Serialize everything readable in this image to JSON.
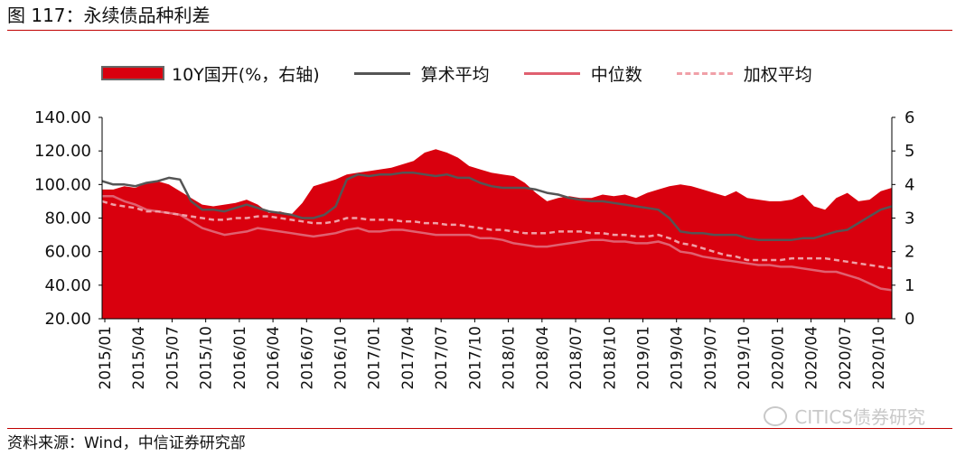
{
  "title": "图 117：永续债品种利差",
  "source": "资料来源：Wind，中信证券研究部",
  "watermark": "CITICS债券研究",
  "legend": {
    "area": "10Y国开(%，右轴)",
    "mean": "算术平均",
    "median": "中位数",
    "weighted": "加权平均"
  },
  "colors": {
    "area": "#d9000e",
    "mean": "#555555",
    "median": "#e06070",
    "weighted": "#f0a0a8",
    "rule": "#c00000"
  },
  "chart_data": {
    "type": "area+line",
    "y_left": {
      "min": 20,
      "max": 140,
      "ticks": [
        "20.00",
        "40.00",
        "60.00",
        "80.00",
        "100.00",
        "120.00",
        "140.00"
      ]
    },
    "y_right": {
      "min": 0,
      "max": 6,
      "ticks": [
        "0",
        "1",
        "2",
        "3",
        "4",
        "5",
        "6"
      ]
    },
    "x_ticks": [
      "2015/01",
      "2015/04",
      "2015/07",
      "2015/10",
      "2016/01",
      "2016/04",
      "2016/07",
      "2016/10",
      "2017/01",
      "2017/04",
      "2017/07",
      "2017/10",
      "2018/01",
      "2018/04",
      "2018/07",
      "2018/10",
      "2019/01",
      "2019/04",
      "2019/07",
      "2019/10",
      "2020/01",
      "2020/04",
      "2020/07",
      "2020/10"
    ],
    "series": [
      {
        "name": "10Y国开(%，右轴)",
        "axis": "right",
        "kind": "area",
        "values": [
          3.85,
          3.85,
          3.95,
          3.9,
          4.05,
          4.1,
          4.0,
          3.8,
          3.6,
          3.4,
          3.35,
          3.4,
          3.45,
          3.55,
          3.4,
          3.15,
          3.2,
          3.1,
          3.45,
          3.95,
          4.05,
          4.15,
          4.3,
          4.35,
          4.4,
          4.45,
          4.5,
          4.6,
          4.7,
          4.95,
          5.05,
          4.95,
          4.8,
          4.55,
          4.45,
          4.35,
          4.3,
          4.25,
          4.05,
          3.75,
          3.5,
          3.6,
          3.65,
          3.6,
          3.6,
          3.7,
          3.65,
          3.7,
          3.6,
          3.75,
          3.85,
          3.95,
          4.0,
          3.95,
          3.85,
          3.75,
          3.65,
          3.8,
          3.6,
          3.55,
          3.5,
          3.5,
          3.55,
          3.7,
          3.35,
          3.25,
          3.6,
          3.75,
          3.5,
          3.55,
          3.8,
          3.9
        ]
      },
      {
        "name": "算术平均",
        "axis": "left",
        "kind": "line",
        "values": [
          102,
          100,
          100,
          99,
          101,
          102,
          104,
          103,
          90,
          85,
          85,
          84,
          86,
          88,
          86,
          84,
          83,
          82,
          80,
          80,
          82,
          87,
          103,
          106,
          105,
          106,
          106,
          107,
          107,
          106,
          105,
          106,
          104,
          104,
          101,
          99,
          98,
          98,
          98,
          97,
          95,
          94,
          92,
          91,
          90,
          90,
          89,
          88,
          87,
          86,
          85,
          80,
          72,
          71,
          71,
          70,
          70,
          70,
          68,
          67,
          67,
          67,
          67,
          68,
          68,
          70,
          72,
          73,
          77,
          81,
          85,
          87
        ]
      },
      {
        "name": "中位数",
        "axis": "left",
        "kind": "line",
        "values": [
          93,
          93,
          90,
          88,
          85,
          84,
          83,
          82,
          78,
          74,
          72,
          70,
          71,
          72,
          74,
          73,
          72,
          71,
          70,
          69,
          70,
          71,
          73,
          74,
          72,
          72,
          73,
          73,
          72,
          71,
          70,
          70,
          70,
          70,
          68,
          68,
          67,
          65,
          64,
          63,
          63,
          64,
          65,
          66,
          67,
          67,
          66,
          66,
          65,
          65,
          66,
          64,
          60,
          59,
          57,
          56,
          55,
          54,
          53,
          52,
          52,
          51,
          51,
          50,
          49,
          48,
          48,
          46,
          44,
          41,
          38,
          37
        ]
      },
      {
        "name": "加权平均",
        "axis": "left",
        "kind": "line",
        "values": [
          90,
          88,
          87,
          86,
          84,
          84,
          83,
          82,
          81,
          80,
          79,
          79,
          80,
          80,
          81,
          81,
          80,
          79,
          78,
          77,
          77,
          78,
          80,
          80,
          79,
          79,
          79,
          78,
          78,
          77,
          77,
          76,
          76,
          75,
          74,
          73,
          73,
          72,
          71,
          71,
          71,
          72,
          72,
          72,
          71,
          71,
          70,
          70,
          69,
          69,
          70,
          68,
          65,
          64,
          62,
          60,
          58,
          57,
          55,
          55,
          55,
          55,
          56,
          56,
          56,
          56,
          55,
          54,
          53,
          52,
          51,
          50
        ]
      }
    ]
  }
}
